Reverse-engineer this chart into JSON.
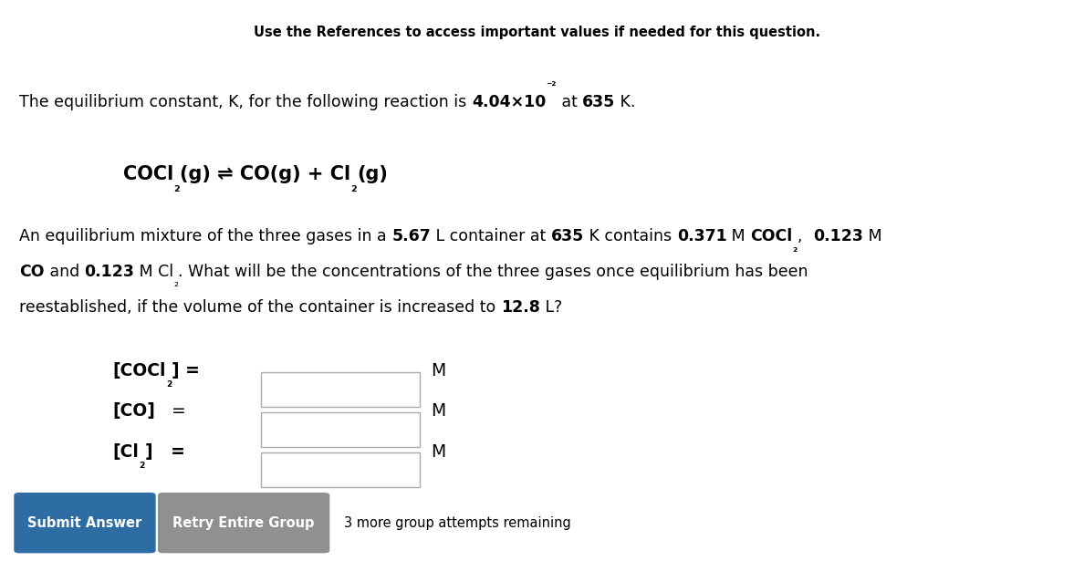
{
  "title_line": "Use the References to access important values if needed for this question.",
  "bg_color": "#ffffff",
  "text_color": "#000000",
  "fig_width": 11.77,
  "fig_height": 6.15,
  "dpi": 100,
  "submit_btn_color": "#2e6da4",
  "retry_btn_color": "#909090",
  "btn_text_color": "#ffffff",
  "title_fontsize": 10.5,
  "body_fontsize": 12.5,
  "label_fontsize": 13.5,
  "btn_fontsize": 10.5
}
